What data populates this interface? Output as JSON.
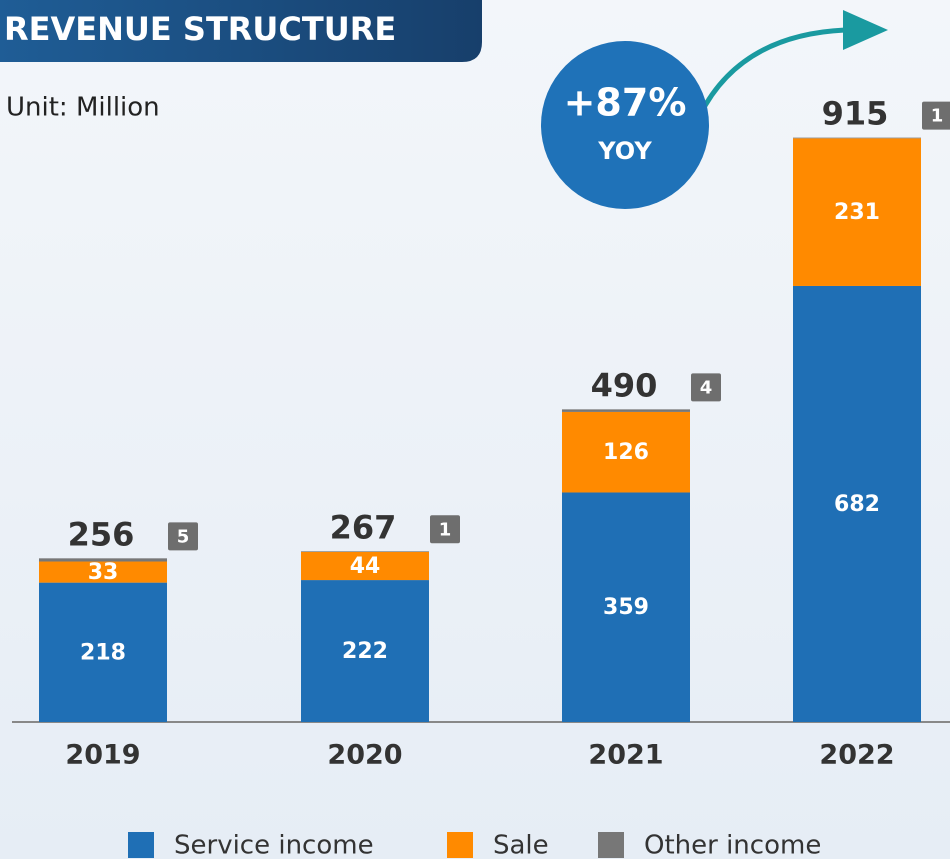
{
  "chart_data": {
    "type": "stacked_bar",
    "title": "REVENUE STRUCTURE",
    "subtitle": "Unit: Million",
    "annotation": {
      "change": "+87%",
      "label": "YOY"
    },
    "categories": [
      "2019",
      "2020",
      "2021",
      "2022"
    ],
    "totals": [
      256,
      267,
      490,
      915
    ],
    "series": [
      {
        "name": "Service income",
        "color": "#1f6fb5",
        "values": [
          218,
          222,
          359,
          682
        ]
      },
      {
        "name": "Sale",
        "color": "#ff8a00",
        "values": [
          33,
          44,
          126,
          231
        ]
      },
      {
        "name": "Other income",
        "color": "#777777",
        "values": [
          5,
          1,
          4,
          1
        ]
      }
    ],
    "legend": "bottom"
  }
}
